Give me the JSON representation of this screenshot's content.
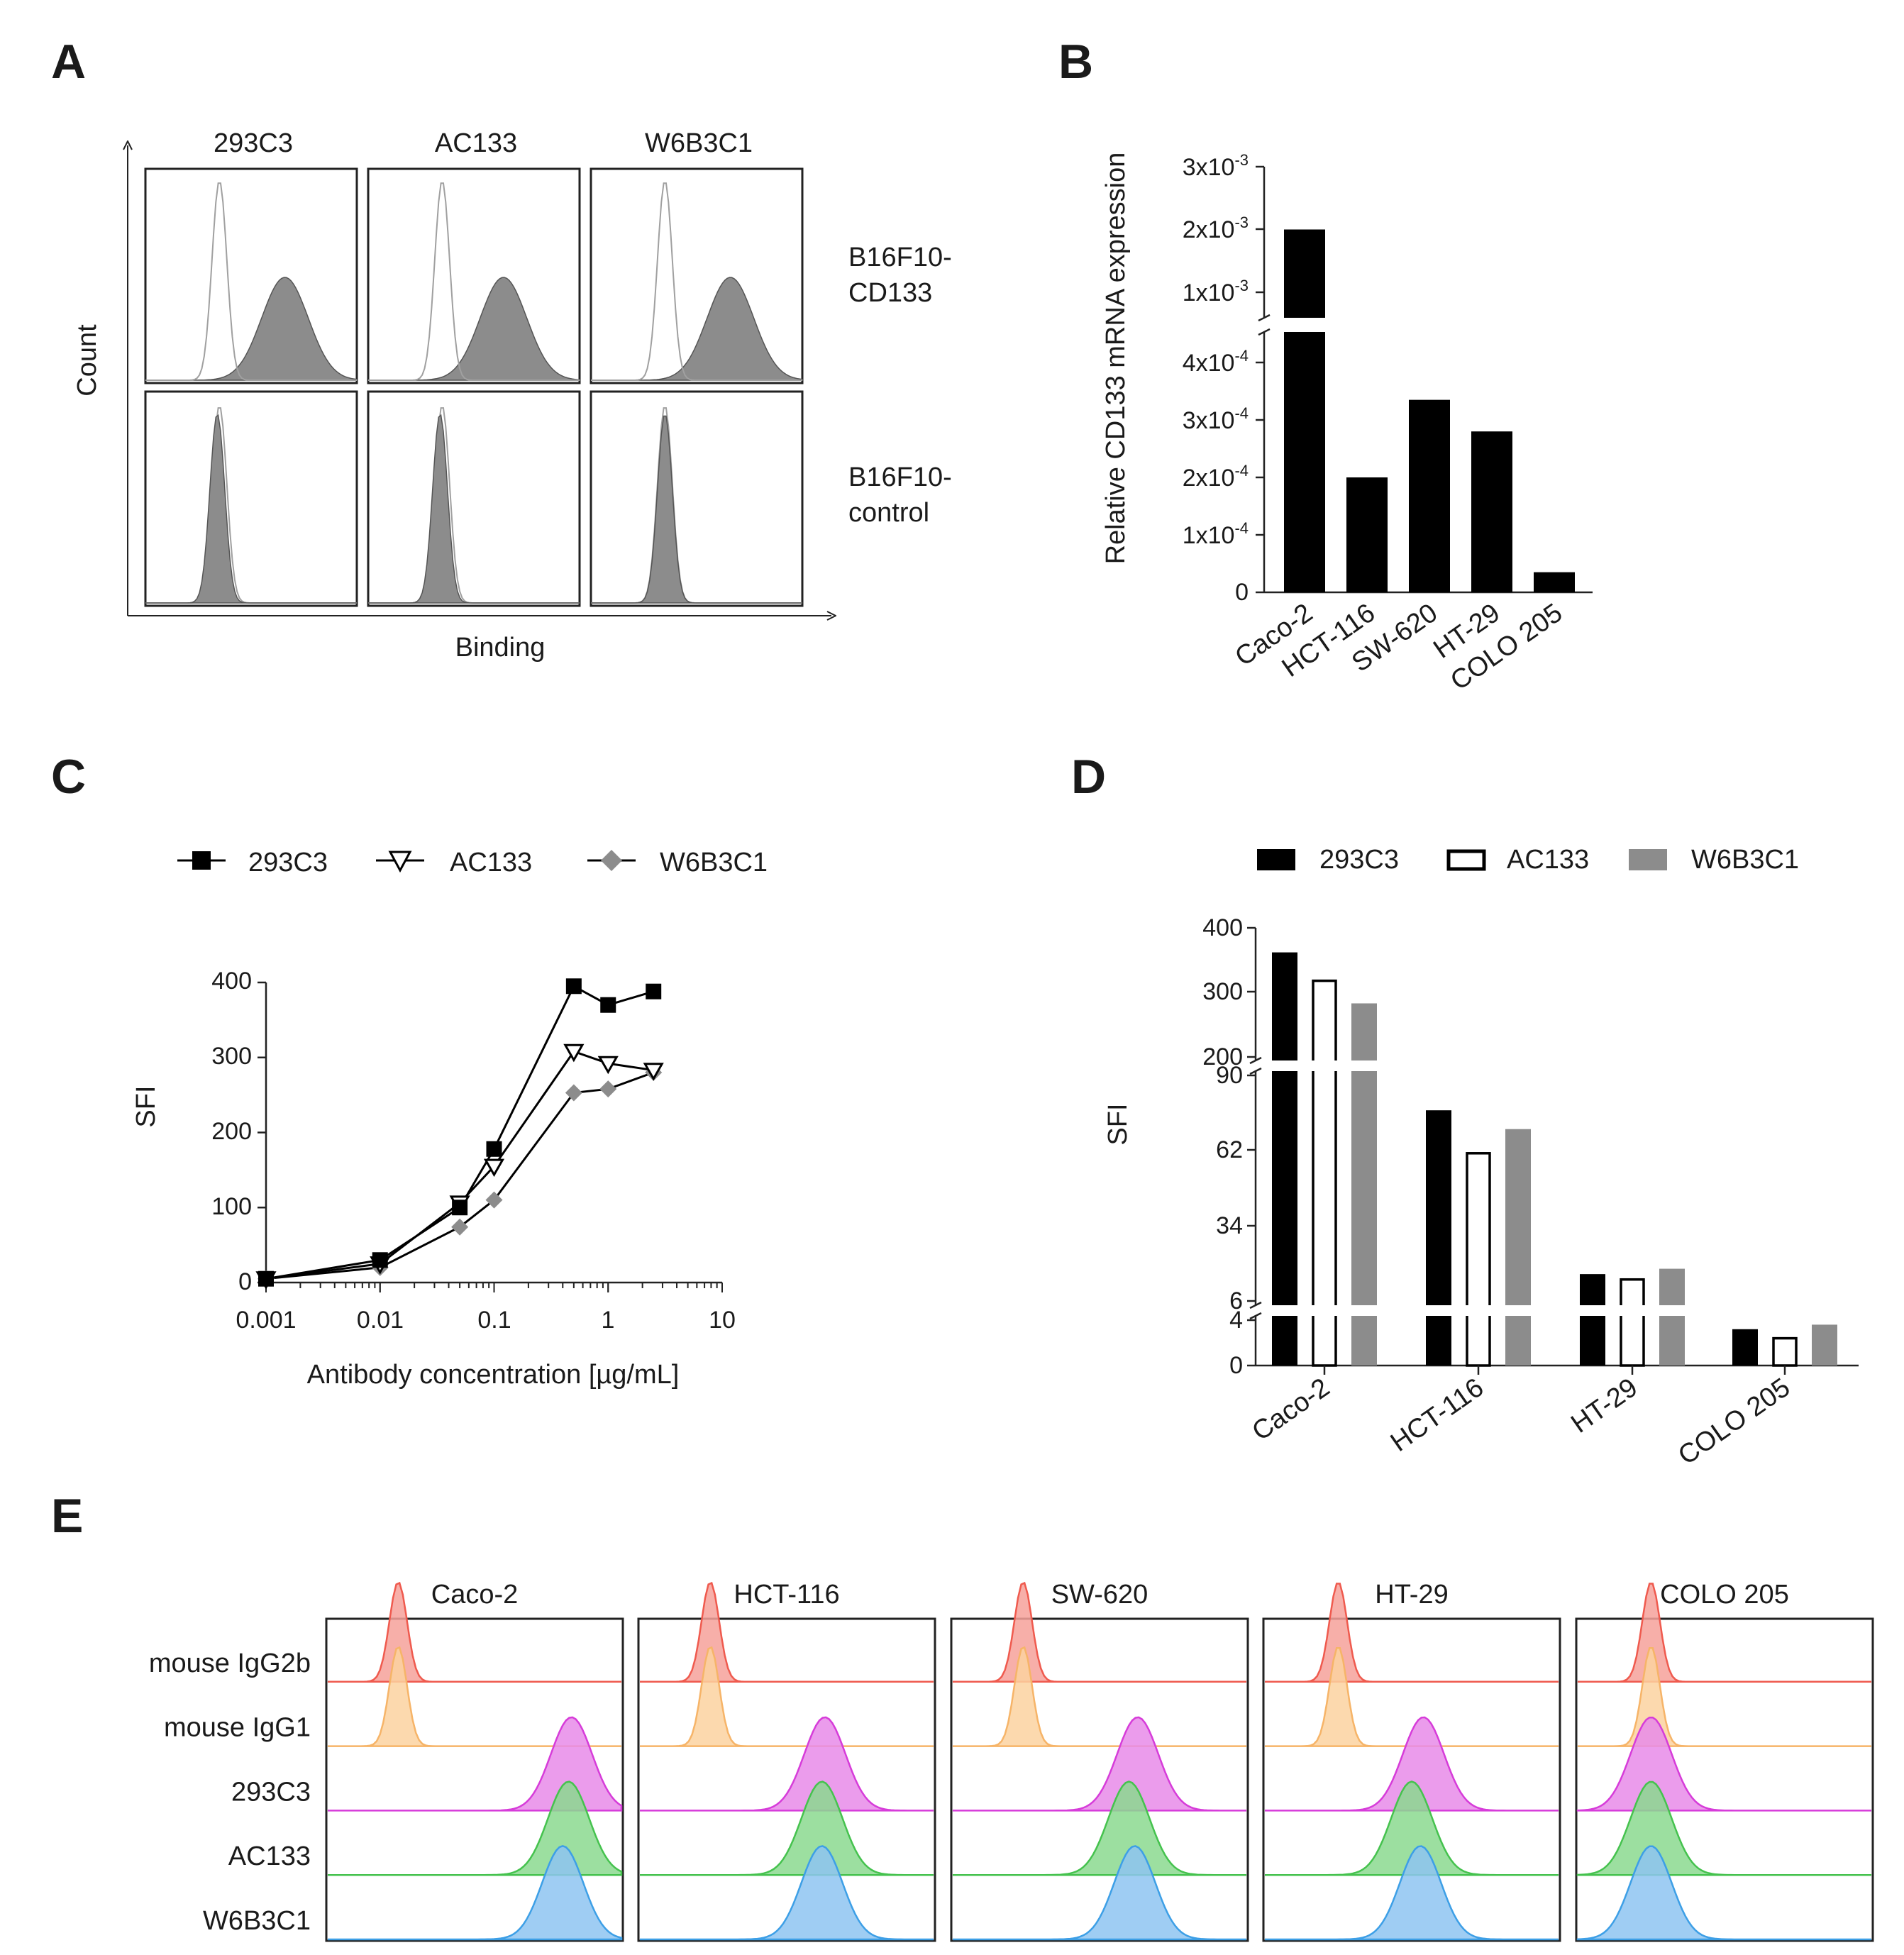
{
  "panels": {
    "a": "A",
    "b": "B",
    "c": "C",
    "d": "D",
    "e": "E"
  },
  "chart_data": [
    {
      "id": "A",
      "type": "histogram-grid",
      "columns": [
        "293C3",
        "AC133",
        "W6B3C1"
      ],
      "rows": [
        "B16F10-CD133",
        "B16F10-control"
      ],
      "row_labels": [
        [
          "B16F10-",
          "CD133"
        ],
        [
          "B16F10-",
          "control"
        ]
      ],
      "xlabel": "Binding",
      "ylabel": "Count",
      "fill_color": "#8c8c8c",
      "outline_color": "#a0a0a0",
      "peaks": {
        "outline": [
          0.35,
          0.35,
          0.35
        ],
        "filled_cd133": [
          0.66,
          0.64,
          0.66
        ],
        "filled_control": [
          0.34,
          0.34,
          0.35
        ]
      }
    },
    {
      "id": "B",
      "type": "bar",
      "categories": [
        "Caco-2",
        "HCT-116",
        "SW-620",
        "HT-29",
        "COLO 205"
      ],
      "values": [
        0.002,
        0.0002,
        0.000335,
        0.00028,
        3.5e-05
      ],
      "ylabel": "Relative CD133 mRNA expression",
      "ylim": [
        0,
        0.003
      ],
      "y_break": [
        0.00045,
        0.0008
      ],
      "lower_ticks": [
        "0",
        "1x10-4",
        "2x10-4",
        "3x10-4",
        "4x10-4"
      ],
      "upper_ticks": [
        "1x10-3",
        "2x10-3",
        "3x10-3"
      ],
      "tick_labels": {
        "t0": "0",
        "t1_base": "1x10",
        "t1_exp": "-4",
        "t2_base": "2x10",
        "t2_exp": "-4",
        "t3_base": "3x10",
        "t3_exp": "-4",
        "t4_base": "4x10",
        "t4_exp": "-4",
        "u1_base": "1x10",
        "u1_exp": "-3",
        "u2_base": "2x10",
        "u2_exp": "-3",
        "u3_base": "3x10",
        "u3_exp": "-3"
      },
      "bar_color": "#000000"
    },
    {
      "id": "C",
      "type": "line",
      "xscale": "log",
      "x": [
        0.001,
        0.01,
        0.05,
        0.1,
        0.5,
        1,
        2.5
      ],
      "series": [
        {
          "name": "293C3",
          "values": [
            5,
            30,
            100,
            178,
            395,
            370,
            388
          ],
          "marker": "square-filled",
          "color": "#000000"
        },
        {
          "name": "AC133",
          "values": [
            5,
            25,
            106,
            155,
            308,
            292,
            283
          ],
          "marker": "triangle-down-open",
          "color": "#000000"
        },
        {
          "name": "W6B3C1",
          "values": [
            5,
            20,
            74,
            110,
            253,
            258,
            280
          ],
          "marker": "diamond-filled",
          "color": "#8c8c8c"
        }
      ],
      "xlabel": "Antibody concentration [µg/mL]",
      "ylabel": "SFI",
      "xticks": [
        "0.001",
        "0.01",
        "0.1",
        "1",
        "10"
      ],
      "yticks": [
        "0",
        "100",
        "200",
        "300",
        "400"
      ],
      "ylim": [
        0,
        400
      ],
      "xlim": [
        0.001,
        10
      ]
    },
    {
      "id": "D",
      "type": "bar",
      "categories": [
        "Caco-2",
        "HCT-116",
        "HT-29",
        "COLO 205"
      ],
      "series": [
        {
          "name": "293C3",
          "values": [
            362,
            77,
            16,
            3.2
          ],
          "style": "filled",
          "color": "#000000"
        },
        {
          "name": "AC133",
          "values": [
            318,
            61,
            14,
            2.4
          ],
          "style": "open",
          "color": "#000000"
        },
        {
          "name": "W6B3C1",
          "values": [
            283,
            70,
            18,
            3.6
          ],
          "style": "filled",
          "color": "#8c8c8c"
        }
      ],
      "ylabel": "SFI",
      "ylim": [
        0,
        400
      ],
      "y_segments": [
        [
          0,
          4
        ],
        [
          6,
          90
        ],
        [
          200,
          400
        ]
      ],
      "yticks": [
        "0",
        "4",
        "6",
        "34",
        "62",
        "90",
        "200",
        "300",
        "400"
      ]
    },
    {
      "id": "E",
      "type": "histogram-grid",
      "columns": [
        "Caco-2",
        "HCT-116",
        "SW-620",
        "HT-29",
        "COLO 205"
      ],
      "rows": [
        "mouse IgG2b",
        "mouse IgG1",
        "293C3",
        "AC133",
        "W6B3C1"
      ],
      "colors": [
        "#ef5a4e",
        "#f6b468",
        "#d63cd9",
        "#45c24e",
        "#3d9fe6"
      ],
      "fill_colors": [
        "#f6a19a",
        "#fbd2a0",
        "#e88be9",
        "#8bd98f",
        "#8ec4f1"
      ],
      "baseline_colors": [
        "#f5b0b4",
        "#f7cfa5",
        "#e8a6ec",
        "#9fdca3",
        "#a3cbf0"
      ],
      "peaks": {
        "mouse IgG2b": [
          0.24,
          0.24,
          0.24,
          0.25,
          0.25
        ],
        "mouse IgG1": [
          0.24,
          0.24,
          0.24,
          0.25,
          0.25
        ],
        "293C3": [
          0.83,
          0.63,
          0.63,
          0.54,
          0.25
        ],
        "AC133": [
          0.82,
          0.62,
          0.6,
          0.5,
          0.25
        ],
        "W6B3C1": [
          0.8,
          0.62,
          0.62,
          0.53,
          0.25
        ]
      }
    }
  ]
}
